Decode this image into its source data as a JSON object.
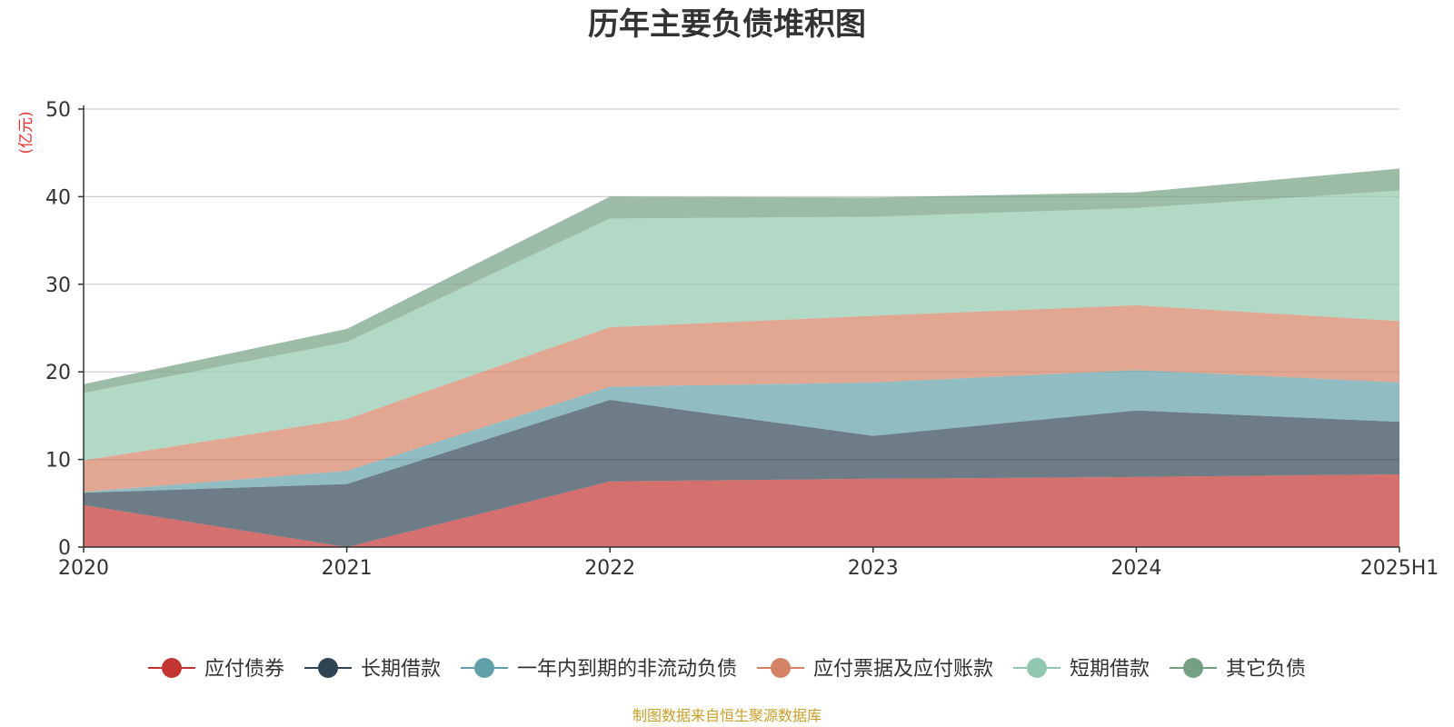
{
  "chart_data": {
    "type": "area",
    "stacked": true,
    "title": "历年主要负债堆积图",
    "ylabel": "(亿元)",
    "ylim": [
      0,
      50
    ],
    "yticks": [
      0,
      10,
      20,
      30,
      40,
      50
    ],
    "grid": true,
    "legend_position": "bottom",
    "categories": [
      "2020",
      "2021",
      "2022",
      "2023",
      "2024",
      "2025H1"
    ],
    "series": [
      {
        "name": "应付债券",
        "color": "#c23531",
        "values": [
          4.8,
          0.0,
          7.5,
          7.8,
          8.0,
          8.3
        ]
      },
      {
        "name": "长期借款",
        "color": "#2f4554",
        "values": [
          1.4,
          7.2,
          9.3,
          4.9,
          7.6,
          6.0
        ]
      },
      {
        "name": "一年内到期的非流动负债",
        "color": "#61a0a8",
        "values": [
          0.1,
          1.5,
          1.5,
          6.1,
          4.6,
          4.5
        ]
      },
      {
        "name": "应付票据及应付账款",
        "color": "#d48265",
        "values": [
          3.6,
          5.9,
          6.8,
          7.6,
          7.4,
          7.0
        ]
      },
      {
        "name": "短期借款",
        "color": "#91c7ae",
        "values": [
          7.7,
          8.8,
          12.4,
          11.3,
          11.1,
          14.9
        ]
      },
      {
        "name": "其它负债",
        "color": "#749f83",
        "values": [
          1.0,
          1.5,
          2.5,
          2.2,
          1.8,
          2.5
        ]
      }
    ]
  },
  "source_note": "制图数据来自恒生聚源数据库"
}
